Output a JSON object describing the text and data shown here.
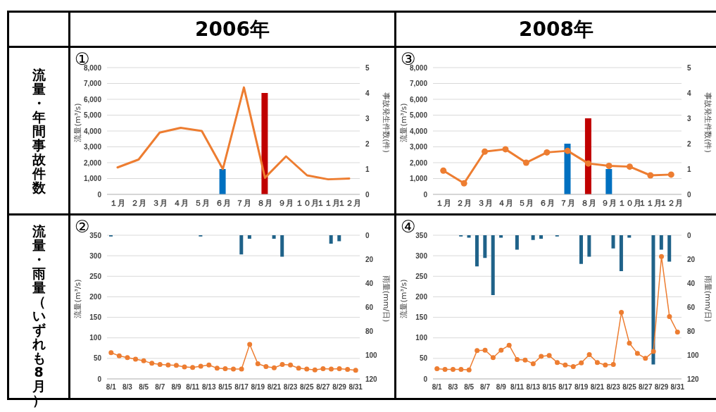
{
  "chart_data": [
    {
      "type": "bar",
      "title": "①",
      "subtitle": "2006年",
      "annotations": [
        "流量・年間事故件数"
      ],
      "categories": [
        "１月",
        "２月",
        "３月",
        "４月",
        "５月",
        "６月",
        "７月",
        "８月",
        "９月",
        "１０月",
        "１１月",
        "１２月"
      ],
      "ylabel": "流量(m³/s)",
      "y2label": "事故発生件数(件)",
      "ylim": [
        0,
        8000
      ],
      "yticks": [
        {
          "value": 0,
          "label": "0"
        },
        {
          "value": 1000,
          "label": "1,000"
        },
        {
          "value": 2000,
          "label": "2,000"
        },
        {
          "value": 3000,
          "label": "3,000"
        },
        {
          "value": 4000,
          "label": "4,000"
        },
        {
          "value": 5000,
          "label": "5,000"
        },
        {
          "value": 6000,
          "label": "6,000"
        },
        {
          "value": 7000,
          "label": "7,000"
        },
        {
          "value": 8000,
          "label": "8,000"
        }
      ],
      "y2lim": [
        0,
        5
      ],
      "y2ticks": [
        0,
        1,
        2,
        3,
        4,
        5
      ],
      "grid": "y",
      "series": [
        {
          "type": "line",
          "color": "#ed7d31",
          "values": [
            1700,
            2200,
            3900,
            4200,
            4000,
            1600,
            6750,
            1050,
            2400,
            1200,
            950,
            1000
          ]
        },
        {
          "axis": "y2",
          "colors": [
            "#0070c0",
            "#0070c0",
            "#0070c0",
            "#0070c0",
            "#0070c0",
            "#0070c0",
            "#0070c0",
            "#c00000",
            "#0070c0",
            "#0070c0",
            "#0070c0",
            "#0070c0"
          ],
          "values": [
            null,
            null,
            null,
            null,
            null,
            1,
            null,
            4,
            null,
            null,
            null,
            null
          ]
        }
      ]
    },
    {
      "type": "bar",
      "title": "③",
      "subtitle": "2008年",
      "marker": "circle",
      "categories": [
        "１月",
        "２月",
        "３月",
        "４月",
        "５月",
        "６月",
        "７月",
        "８月",
        "９月",
        "１０月",
        "１１月",
        "１２月"
      ],
      "ylabel": "流量(m³/s)",
      "y2label": "事故発生件数(件)",
      "ylim": [
        0,
        8000
      ],
      "yticks": [
        {
          "value": 0,
          "label": "0"
        },
        {
          "value": 1000,
          "label": "1,000"
        },
        {
          "value": 2000,
          "label": "2,000"
        },
        {
          "value": 3000,
          "label": "3,000"
        },
        {
          "value": 4000,
          "label": "4,000"
        },
        {
          "value": 5000,
          "label": "5,000"
        },
        {
          "value": 6000,
          "label": "6,000"
        },
        {
          "value": 7000,
          "label": "7,000"
        },
        {
          "value": 8000,
          "label": "8,000"
        }
      ],
      "y2lim": [
        0,
        5
      ],
      "y2ticks": [
        0,
        1,
        2,
        3,
        4,
        5
      ],
      "grid": "y",
      "series": [
        {
          "type": "line",
          "color": "#ed7d31",
          "values": [
            1500,
            700,
            2700,
            2850,
            2000,
            2650,
            2750,
            1950,
            1800,
            1750,
            1200,
            1250
          ]
        },
        {
          "axis": "y2",
          "colors": [
            "#0070c0",
            "#0070c0",
            "#0070c0",
            "#0070c0",
            "#0070c0",
            "#0070c0",
            "#0070c0",
            "#c00000",
            "#0070c0",
            "#0070c0",
            "#0070c0",
            "#0070c0"
          ],
          "values": [
            null,
            null,
            null,
            null,
            null,
            null,
            2,
            3,
            1,
            null,
            null,
            null
          ]
        }
      ]
    },
    {
      "type": "bar",
      "title": "②",
      "annotations": [
        "流量・雨量（いずれも8月）"
      ],
      "marker": "circle",
      "categories": [
        "8/1",
        null,
        "8/3",
        null,
        "8/5",
        null,
        "8/7",
        null,
        "8/9",
        null,
        "8/11",
        null,
        "8/13",
        null,
        "8/15",
        null,
        "8/17",
        null,
        "8/19",
        null,
        "8/21",
        null,
        "8/23",
        null,
        "8/25",
        null,
        "8/27",
        null,
        "8/29",
        null,
        "8/31"
      ],
      "ylabel": "流量(m³/s)",
      "y2label": "雨量(mm/日)",
      "ylim": [
        0,
        350
      ],
      "yticks": [
        0,
        50,
        100,
        150,
        200,
        250,
        300,
        350
      ],
      "y2lim": [
        120,
        0
      ],
      "y2ticks": [
        0,
        20,
        40,
        60,
        80,
        100,
        120
      ],
      "grid": "y",
      "series": [
        {
          "type": "line",
          "color": "#ed7d31",
          "values": [
            64,
            56,
            52,
            48,
            44,
            38,
            35,
            34,
            33,
            29,
            28,
            31,
            34,
            26,
            25,
            24,
            24,
            84,
            37,
            30,
            27,
            35,
            34,
            26,
            24,
            22,
            25,
            24,
            25,
            23,
            21
          ]
        },
        {
          "axis": "y2",
          "color": "#1f6289",
          "values": [
            1,
            null,
            null,
            null,
            null,
            null,
            null,
            null,
            null,
            null,
            null,
            1,
            null,
            null,
            null,
            null,
            16,
            3,
            null,
            null,
            3,
            18,
            null,
            null,
            null,
            null,
            null,
            7,
            5,
            null,
            null
          ]
        }
      ]
    },
    {
      "type": "bar",
      "title": "④",
      "marker": "circle",
      "categories": [
        "8/1",
        null,
        "8/3",
        null,
        "8/5",
        null,
        "8/7",
        null,
        "8/9",
        null,
        "8/11",
        null,
        "8/13",
        null,
        "8/15",
        null,
        "8/17",
        null,
        "8/19",
        null,
        "8/21",
        null,
        "8/23",
        null,
        "8/25",
        null,
        "8/27",
        null,
        "8/29",
        null,
        "8/31"
      ],
      "ylabel": "流量(m³/s)",
      "y2label": "雨量(mm/日)",
      "ylim": [
        0,
        350
      ],
      "yticks": [
        0,
        50,
        100,
        150,
        200,
        250,
        300,
        350
      ],
      "y2lim": [
        120,
        0
      ],
      "y2ticks": [
        0,
        20,
        40,
        60,
        80,
        100,
        120
      ],
      "grid": "y",
      "series": [
        {
          "type": "line",
          "color": "#ed7d31",
          "values": [
            25,
            23,
            23,
            23,
            22,
            69,
            70,
            52,
            70,
            82,
            47,
            46,
            37,
            55,
            57,
            40,
            34,
            30,
            39,
            59,
            40,
            34,
            35,
            162,
            87,
            62,
            50,
            67,
            298,
            152,
            114
          ]
        },
        {
          "axis": "y2",
          "color": "#1f6289",
          "values": [
            null,
            null,
            null,
            1,
            2,
            26,
            19,
            50,
            2,
            null,
            12,
            null,
            4,
            3,
            null,
            1,
            null,
            null,
            24,
            18,
            null,
            null,
            11,
            30,
            2,
            null,
            null,
            108,
            12,
            22,
            null
          ]
        }
      ]
    }
  ]
}
